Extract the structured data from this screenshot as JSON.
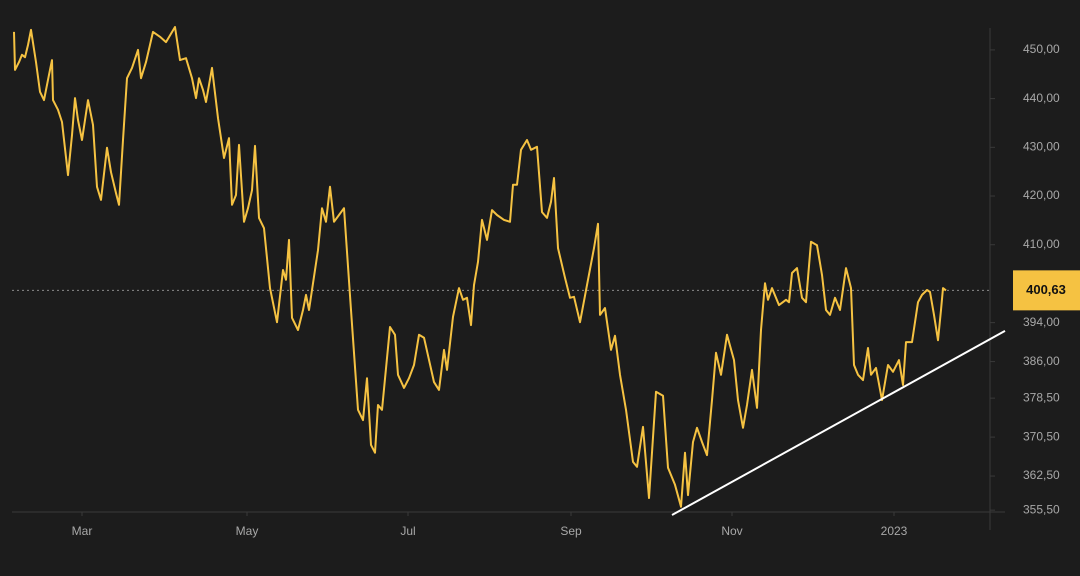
{
  "chart_data": {
    "type": "line",
    "x": [
      2,
      3,
      7,
      10,
      13,
      16,
      19,
      24,
      28,
      32,
      37,
      40,
      41,
      46,
      50,
      56,
      60,
      63,
      66,
      70,
      76,
      81,
      85,
      89,
      95,
      99,
      104,
      107,
      111,
      115,
      120,
      126,
      129,
      134,
      141,
      148,
      154,
      163,
      168,
      174,
      180,
      184,
      187,
      191,
      194,
      200,
      206,
      212,
      217,
      220,
      224,
      227,
      232,
      236,
      240,
      243,
      247,
      252,
      258,
      265,
      271,
      274,
      277,
      280,
      286,
      291,
      294,
      297,
      300,
      306,
      310,
      314,
      318,
      322,
      327,
      332,
      339,
      346,
      351,
      355,
      359,
      363,
      366,
      370,
      378,
      383,
      386,
      392,
      397,
      402,
      407,
      412,
      422,
      427,
      432,
      435,
      441,
      447,
      451,
      455,
      459,
      462,
      466,
      470,
      475,
      480,
      485,
      492,
      498,
      501,
      505,
      509,
      515,
      519,
      525,
      530,
      535,
      539,
      542,
      546,
      553,
      558,
      562,
      568,
      575,
      582,
      586,
      588,
      593,
      599,
      603,
      608,
      614,
      621,
      625,
      631,
      637,
      644,
      651,
      656,
      663,
      669,
      673,
      676,
      681,
      685,
      690,
      695,
      700,
      704,
      709,
      715,
      722,
      726,
      731,
      735,
      740,
      745,
      749,
      753,
      756,
      760,
      767,
      774,
      777,
      780,
      785,
      790,
      794,
      799,
      805,
      810,
      814,
      818,
      823,
      828,
      834,
      839,
      842,
      846,
      851,
      856,
      859,
      864,
      870,
      876,
      881,
      887,
      891,
      894,
      900,
      906,
      910,
      915,
      918,
      922,
      926,
      929,
      931,
      934
    ],
    "series": [
      {
        "color": "#f5c242",
        "values": [
          453.7,
          445.9,
          447.5,
          449.0,
          448.5,
          451.0,
          454.1,
          447.5,
          441.4,
          439.7,
          444.9,
          447.9,
          439.7,
          437.7,
          435.2,
          424.3,
          432.5,
          440.1,
          435.6,
          431.5,
          439.7,
          434.6,
          421.9,
          419.2,
          429.9,
          424.9,
          420.6,
          418.2,
          431.5,
          444.2,
          446.3,
          450.0,
          444.2,
          447.5,
          453.7,
          452.7,
          451.6,
          454.7,
          447.9,
          448.3,
          444.2,
          440.1,
          444.2,
          441.8,
          439.3,
          446.3,
          436.0,
          427.8,
          431.9,
          418.2,
          420.2,
          430.5,
          414.7,
          417.5,
          421.2,
          430.3,
          415.5,
          413.4,
          401.1,
          394.1,
          404.8,
          402.8,
          411.0,
          395.0,
          392.5,
          396.6,
          399.7,
          396.6,
          400.7,
          408.9,
          417.5,
          414.7,
          421.9,
          414.7,
          416.1,
          417.5,
          396.6,
          376.1,
          374.0,
          382.6,
          368.9,
          367.3,
          377.1,
          376.1,
          393.1,
          391.5,
          383.3,
          380.6,
          382.6,
          385.3,
          391.5,
          390.9,
          381.8,
          380.2,
          388.4,
          384.3,
          395.2,
          401.1,
          398.7,
          399.1,
          393.5,
          401.7,
          406.5,
          415.1,
          411.0,
          417.1,
          416.1,
          415.1,
          414.7,
          422.3,
          422.3,
          429.5,
          431.5,
          429.5,
          430.1,
          416.7,
          415.5,
          418.8,
          423.7,
          409.3,
          403.2,
          399.1,
          399.3,
          394.1,
          401.7,
          409.3,
          414.3,
          395.6,
          397.0,
          388.4,
          391.3,
          383.3,
          376.1,
          365.4,
          364.4,
          372.6,
          358.0,
          379.8,
          379.0,
          364.2,
          360.7,
          356.2,
          367.3,
          358.6,
          369.5,
          372.4,
          369.5,
          366.8,
          378.1,
          387.8,
          383.3,
          391.5,
          386.3,
          378.1,
          372.4,
          377.1,
          384.3,
          376.5,
          392.5,
          402.1,
          398.7,
          401.1,
          397.6,
          398.7,
          398.2,
          404.2,
          405.2,
          399.1,
          398.2,
          410.6,
          409.9,
          403.8,
          396.6,
          395.6,
          399.1,
          396.6,
          405.2,
          401.1,
          385.3,
          383.3,
          382.2,
          388.8,
          383.3,
          384.7,
          378.1,
          385.3,
          383.9,
          386.3,
          381.2,
          390.0,
          390.0,
          398.2,
          399.7,
          400.7,
          400.3,
          395.6,
          390.4,
          396.6,
          401.1,
          400.63
        ]
      }
    ],
    "trendline": {
      "x": [
        660,
        993
      ],
      "values": [
        354.5,
        392.3
      ],
      "color": "#ffffff"
    },
    "last_price": {
      "value": 400.63,
      "label": "400,63",
      "color": "#f5c242"
    },
    "xlim": [
      0,
      980
    ],
    "xticks": [
      {
        "value": 70,
        "label": "Mar"
      },
      {
        "value": 235,
        "label": "May"
      },
      {
        "value": 396,
        "label": "Jul"
      },
      {
        "value": 559,
        "label": "Sep"
      },
      {
        "value": 720,
        "label": "Nov"
      },
      {
        "value": 882,
        "label": "2023"
      }
    ],
    "ylim": [
      355.12,
      454.5
    ],
    "yticks": [
      {
        "value": 450,
        "label": "450,00"
      },
      {
        "value": 440,
        "label": "440,00"
      },
      {
        "value": 430,
        "label": "430,00"
      },
      {
        "value": 420,
        "label": "420,00"
      },
      {
        "value": 410,
        "label": "410,00"
      },
      {
        "value": 394,
        "label": "394,00"
      },
      {
        "value": 386,
        "label": "386,00"
      },
      {
        "value": 378.5,
        "label": "378,50"
      },
      {
        "value": 370.5,
        "label": "370,50"
      },
      {
        "value": 362.5,
        "label": "362,50"
      },
      {
        "value": 355.5,
        "label": "355,50"
      }
    ]
  }
}
